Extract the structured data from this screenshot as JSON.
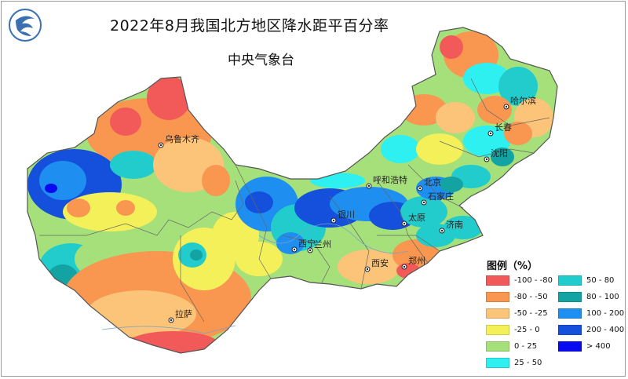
{
  "title": "2022年8月我国北方地区降水距平百分率",
  "subtitle": "中央气象台",
  "legend": {
    "title": "图例（%）",
    "items": [
      {
        "label": "-100 - -80",
        "color": "#f25a5a"
      },
      {
        "label": "50 - 80",
        "color": "#22cccc"
      },
      {
        "label": "-80 - -50",
        "color": "#f99650"
      },
      {
        "label": "80 - 100",
        "color": "#14a3a3"
      },
      {
        "label": "-50 - -25",
        "color": "#fcc478"
      },
      {
        "label": "100 - 200",
        "color": "#1e8ff0"
      },
      {
        "label": "-25 - 0",
        "color": "#f3f05a"
      },
      {
        "label": "200 - 400",
        "color": "#1450dc"
      },
      {
        "label": "0 - 25",
        "color": "#a5e07a"
      },
      {
        "label": "> 400",
        "color": "#0a0af0"
      },
      {
        "label": "25 - 50",
        "color": "#2ef0f0"
      }
    ]
  },
  "cities": [
    {
      "name": "乌鲁木齐"
    },
    {
      "name": "拉萨"
    },
    {
      "name": "哈尔滨"
    },
    {
      "name": "长春"
    },
    {
      "name": "沈阳"
    },
    {
      "name": "呼和浩特"
    },
    {
      "name": "北京"
    },
    {
      "name": "银川"
    },
    {
      "name": "西宁"
    },
    {
      "name": "兰州"
    },
    {
      "name": "太原"
    },
    {
      "name": "石家庄"
    },
    {
      "name": "济南"
    },
    {
      "name": "郑州"
    },
    {
      "name": "西安"
    }
  ]
}
